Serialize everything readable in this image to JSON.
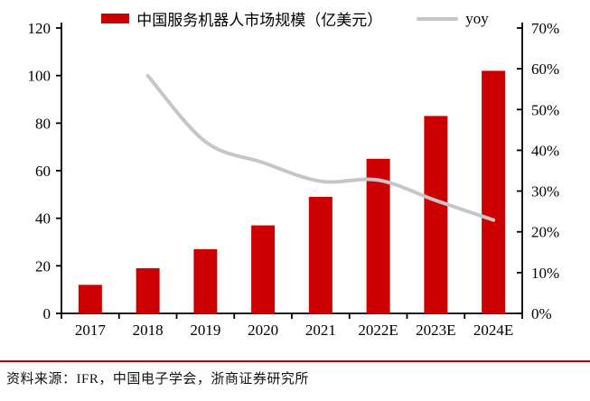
{
  "chart_data": {
    "type": "bar",
    "categories": [
      "2017",
      "2018",
      "2019",
      "2020",
      "2021",
      "2022E",
      "2023E",
      "2024E"
    ],
    "series": [
      {
        "name": "中国服务机器人市场规模（亿美元）",
        "type": "bar",
        "axis": "left",
        "color": "#CC0000",
        "values": [
          12,
          19,
          27,
          37,
          49,
          65,
          83,
          102
        ]
      },
      {
        "name": "yoy",
        "type": "line",
        "axis": "right",
        "color": "#C6C6C6",
        "values": [
          null,
          58.3,
          42.1,
          37.0,
          32.4,
          32.7,
          27.7,
          22.9
        ]
      }
    ],
    "title": "",
    "xlabel": "",
    "ylabel": "",
    "left_axis": {
      "min": 0,
      "max": 120,
      "step": 20,
      "tick_labels": [
        "0",
        "20",
        "40",
        "60",
        "80",
        "100",
        "120"
      ]
    },
    "right_axis": {
      "min": 0,
      "max": 70,
      "step": 10,
      "tick_labels": [
        "0%",
        "10%",
        "20%",
        "30%",
        "40%",
        "50%",
        "60%",
        "70%"
      ]
    },
    "grid": false,
    "legend_position": "top"
  },
  "legend": {
    "bar_label": "中国服务机器人市场规模（亿美元）",
    "line_label": "yoy"
  },
  "colors": {
    "bar": "#CC0000",
    "line": "#C6C6C6",
    "axis": "#000000",
    "footer_rule": "#C00000"
  },
  "footer": {
    "source_text": "资料来源：IFR，中国电子学会，浙商证券研究所"
  }
}
